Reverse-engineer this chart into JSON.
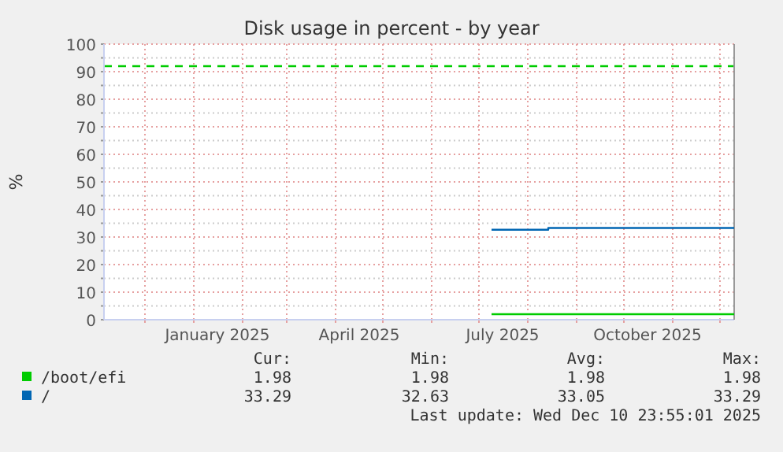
{
  "chart_data": {
    "type": "step",
    "title": "Disk usage in percent - by year",
    "ylabel": "%",
    "xlim": [
      "2024-11-05",
      "2025-12-10"
    ],
    "xticks": [
      {
        "value": "2024-12-01",
        "label": null
      },
      {
        "value": "2025-01-01",
        "label": null
      },
      {
        "value": "2025-01-16",
        "label": "January 2025"
      },
      {
        "value": "2025-02-01",
        "label": null
      },
      {
        "value": "2025-03-01",
        "label": null
      },
      {
        "value": "2025-04-01",
        "label": null
      },
      {
        "value": "2025-04-16",
        "label": "April 2025"
      },
      {
        "value": "2025-05-01",
        "label": null
      },
      {
        "value": "2025-06-01",
        "label": null
      },
      {
        "value": "2025-07-01",
        "label": null
      },
      {
        "value": "2025-07-16",
        "label": "July 2025"
      },
      {
        "value": "2025-08-01",
        "label": null
      },
      {
        "value": "2025-09-01",
        "label": null
      },
      {
        "value": "2025-10-01",
        "label": null
      },
      {
        "value": "2025-10-16",
        "label": "October 2025"
      },
      {
        "value": "2025-11-01",
        "label": null
      },
      {
        "value": "2025-12-01",
        "label": null
      }
    ],
    "ylim": [
      0,
      100
    ],
    "yticks": [
      0,
      {
        "value": 5,
        "label": null
      },
      10,
      {
        "value": 15,
        "label": null
      },
      20,
      {
        "value": 25,
        "label": null
      },
      30,
      {
        "value": 35,
        "label": null
      },
      40,
      {
        "value": 45,
        "label": null
      },
      50,
      {
        "value": 55,
        "label": null
      },
      60,
      {
        "value": 65,
        "label": null
      },
      70,
      {
        "value": 75,
        "label": null
      },
      80,
      {
        "value": 85,
        "label": null
      },
      90,
      {
        "value": 95,
        "label": null
      },
      100
    ],
    "grid": true,
    "legend": "bottom",
    "series": [
      {
        "name": "/boot/efi",
        "color": "#00cc00",
        "x": [
          "2025-07-09",
          "2025-12-10"
        ],
        "values": [
          1.98,
          1.98
        ]
      },
      {
        "name": "/",
        "color": "#0066b3",
        "x": [
          "2025-07-09",
          "2025-08-14",
          "2025-12-10"
        ],
        "values": [
          32.63,
          33.29,
          33.29
        ]
      }
    ],
    "ref_lines": [
      {
        "axis": "y",
        "value": 92,
        "color": "#00cc00",
        "line_style": "dashed"
      }
    ],
    "annotations": [
      "Cur:",
      "Min:",
      "Avg:",
      "Max:",
      "1.98",
      "1.98",
      "1.98",
      "1.98",
      "33.29",
      "32.63",
      "33.05",
      "33.29",
      "Last update: Wed Dec 10 23:55:01 2025"
    ]
  }
}
